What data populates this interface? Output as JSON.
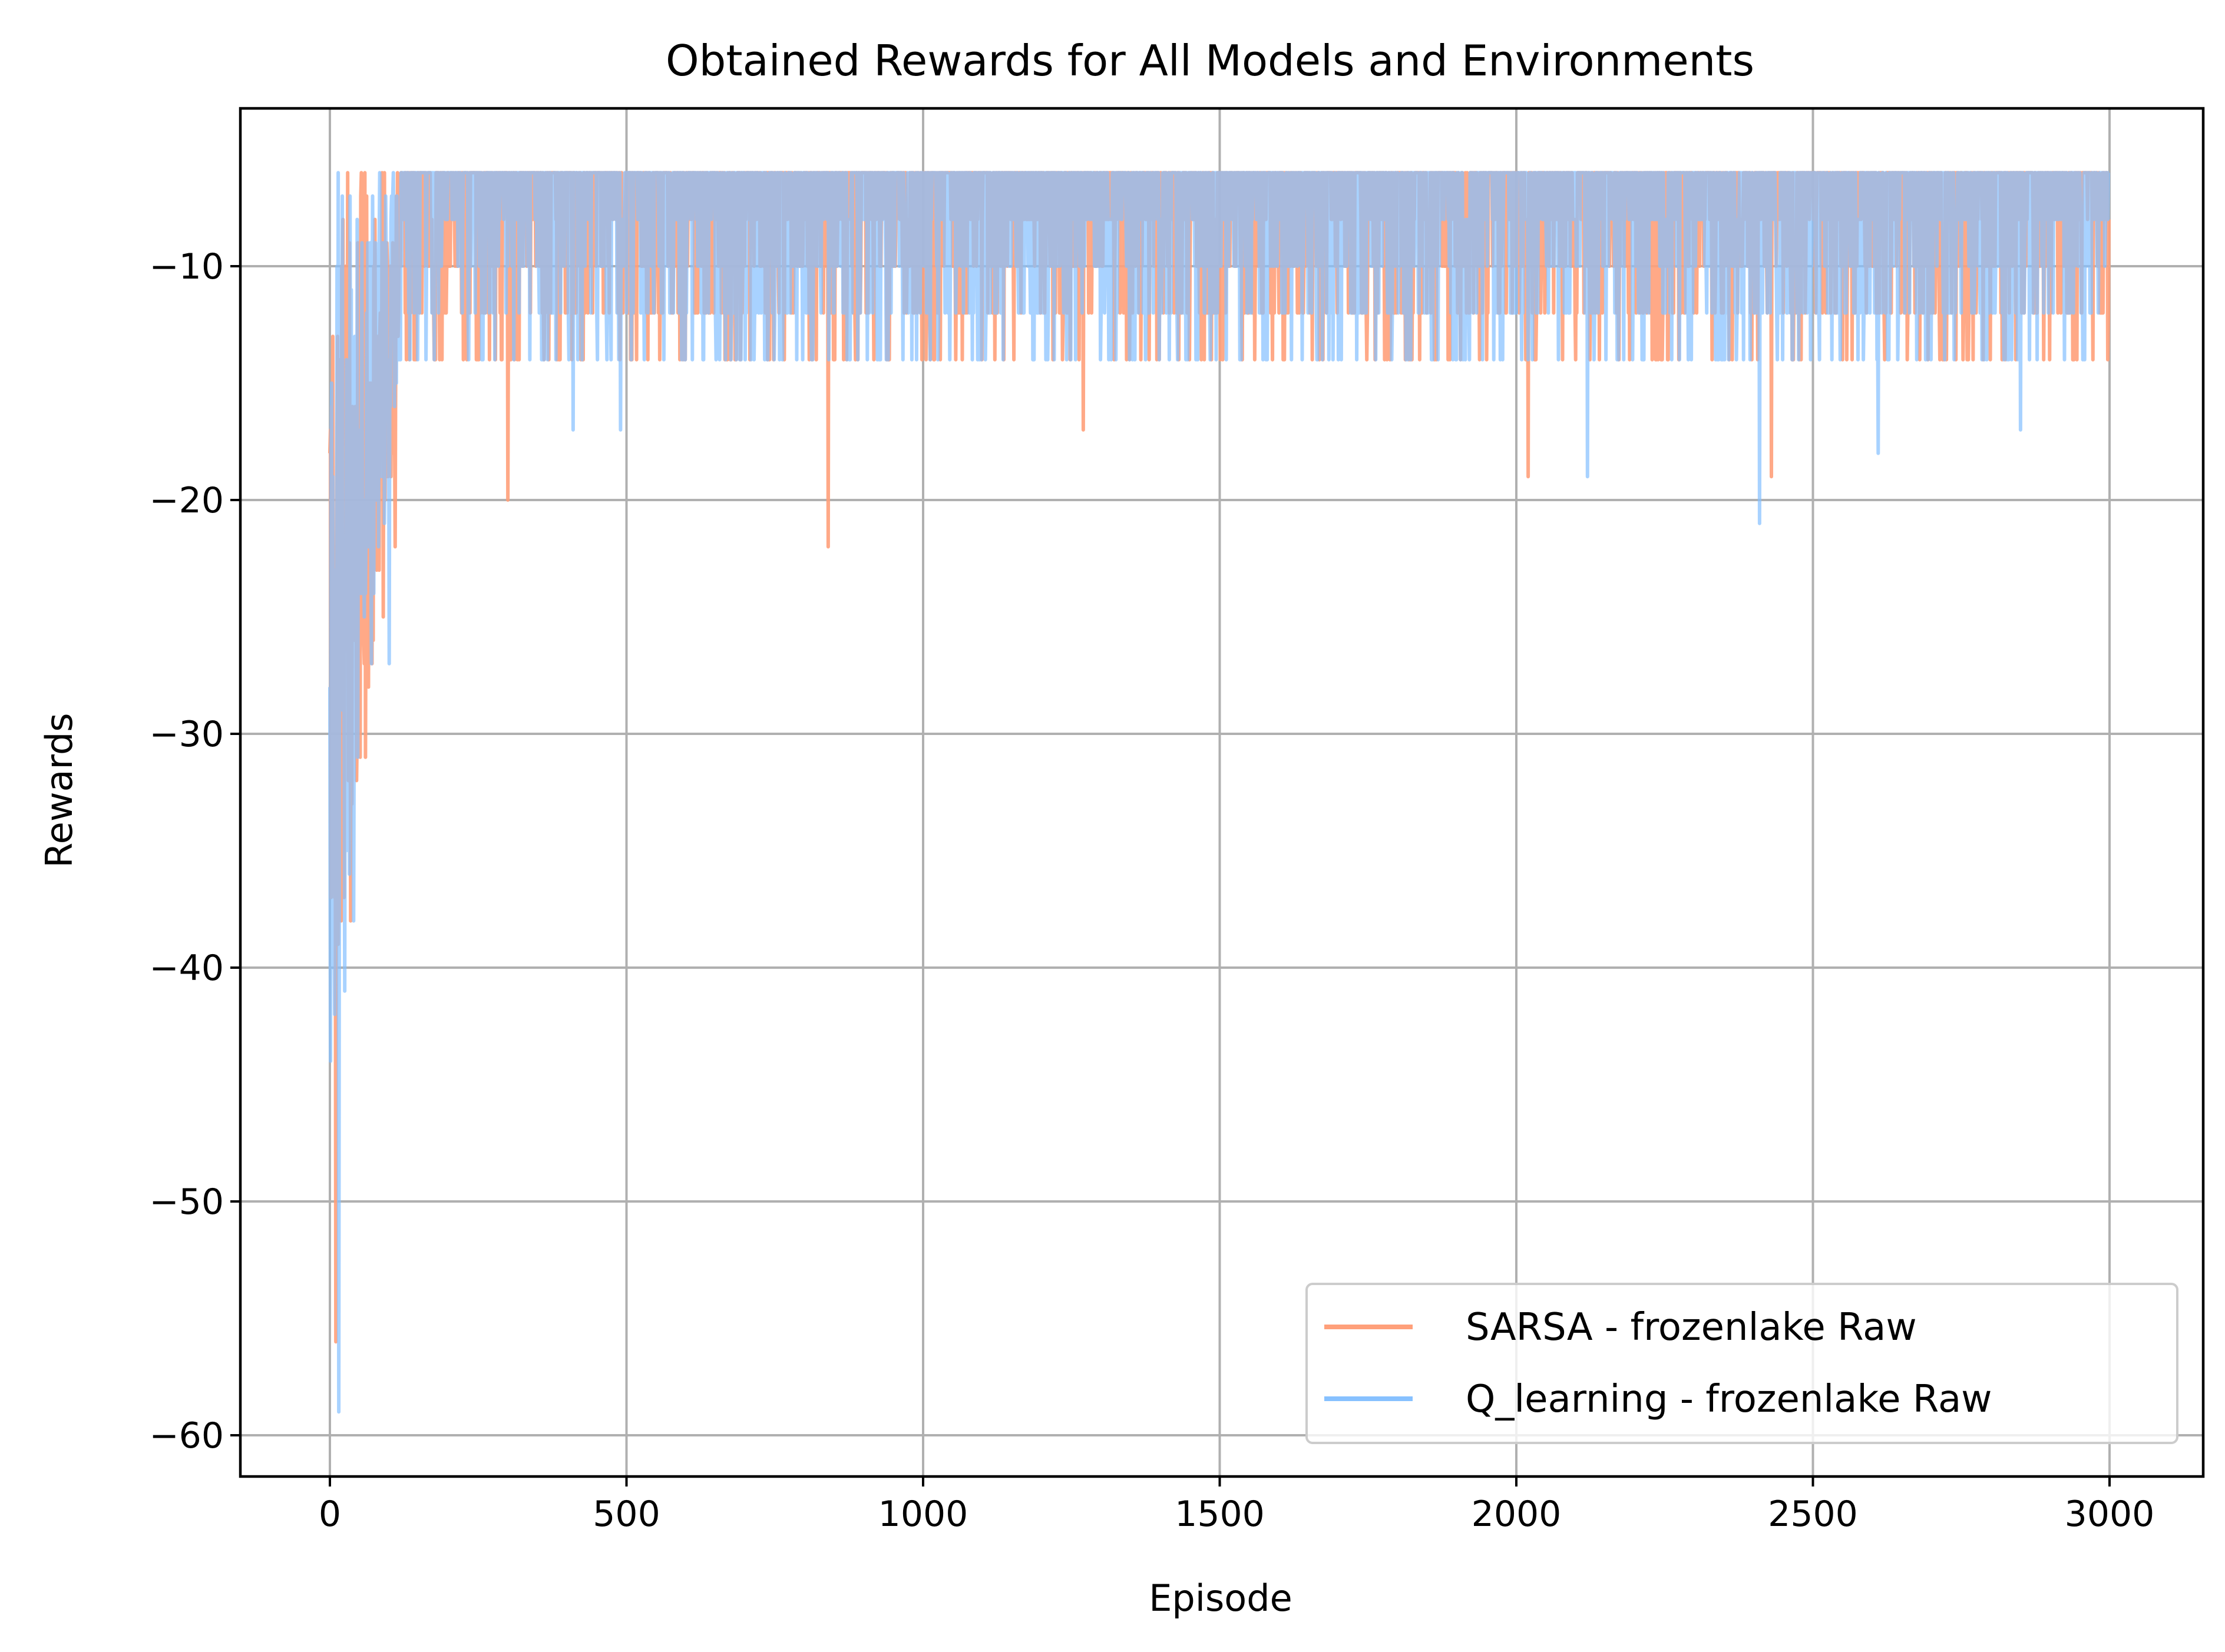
{
  "chart_data": {
    "type": "line",
    "title": "Obtained Rewards for All Models and Environments",
    "xlabel": "Episode",
    "ylabel": "Rewards",
    "xlim": [
      -150,
      3150
    ],
    "ylim": [
      -61.6,
      -2.4
    ],
    "xticks": [
      0,
      500,
      1000,
      1500,
      2000,
      2500,
      3000
    ],
    "yticks": [
      -60,
      -50,
      -40,
      -30,
      -20,
      -10
    ],
    "xtick_labels": [
      "0",
      "500",
      "1000",
      "1500",
      "2000",
      "2500",
      "3000"
    ],
    "ytick_labels": [
      "−60",
      "−50",
      "−40",
      "−30",
      "−20",
      "−10"
    ],
    "grid": true,
    "legend_position": "lower-right",
    "series": [
      {
        "name": "SARSA - frozenlake Raw",
        "color": "#FFA07A",
        "episodes": 3000,
        "approx_profile": "rewards start near -18, dip to about -56 within the first 20 episodes, climb back to about -12 by episode 120, then oscillate between about -6 and -14 for the rest of training",
        "key_points": [
          [
            0,
            -18
          ],
          [
            10,
            -56
          ],
          [
            20,
            -10
          ],
          [
            30,
            -6
          ],
          [
            35,
            -38
          ],
          [
            45,
            -32
          ],
          [
            60,
            -31
          ],
          [
            90,
            -25
          ],
          [
            110,
            -22
          ],
          [
            300,
            -20
          ],
          [
            840,
            -22
          ],
          [
            1270,
            -17
          ],
          [
            2020,
            -19
          ],
          [
            2430,
            -19
          ]
        ],
        "band": {
          "upper": -6,
          "lower": -14
        }
      },
      {
        "name": "Q_learning - frozenlake Raw",
        "color": "#87C1FF",
        "episodes": 3000,
        "approx_profile": "rewards start near -28, drop to about -59 within the first 15 episodes, recover to about -12 by episode 120, then oscillate between about -6 and -14 for the rest of training",
        "key_points": [
          [
            0,
            -28
          ],
          [
            15,
            -59
          ],
          [
            25,
            -41
          ],
          [
            40,
            -38
          ],
          [
            60,
            -24
          ],
          [
            100,
            -27
          ],
          [
            410,
            -17
          ],
          [
            490,
            -17
          ],
          [
            2120,
            -19
          ],
          [
            2410,
            -21
          ],
          [
            2610,
            -18
          ],
          [
            2850,
            -17
          ]
        ],
        "band": {
          "upper": -6,
          "lower": -14
        }
      }
    ]
  }
}
